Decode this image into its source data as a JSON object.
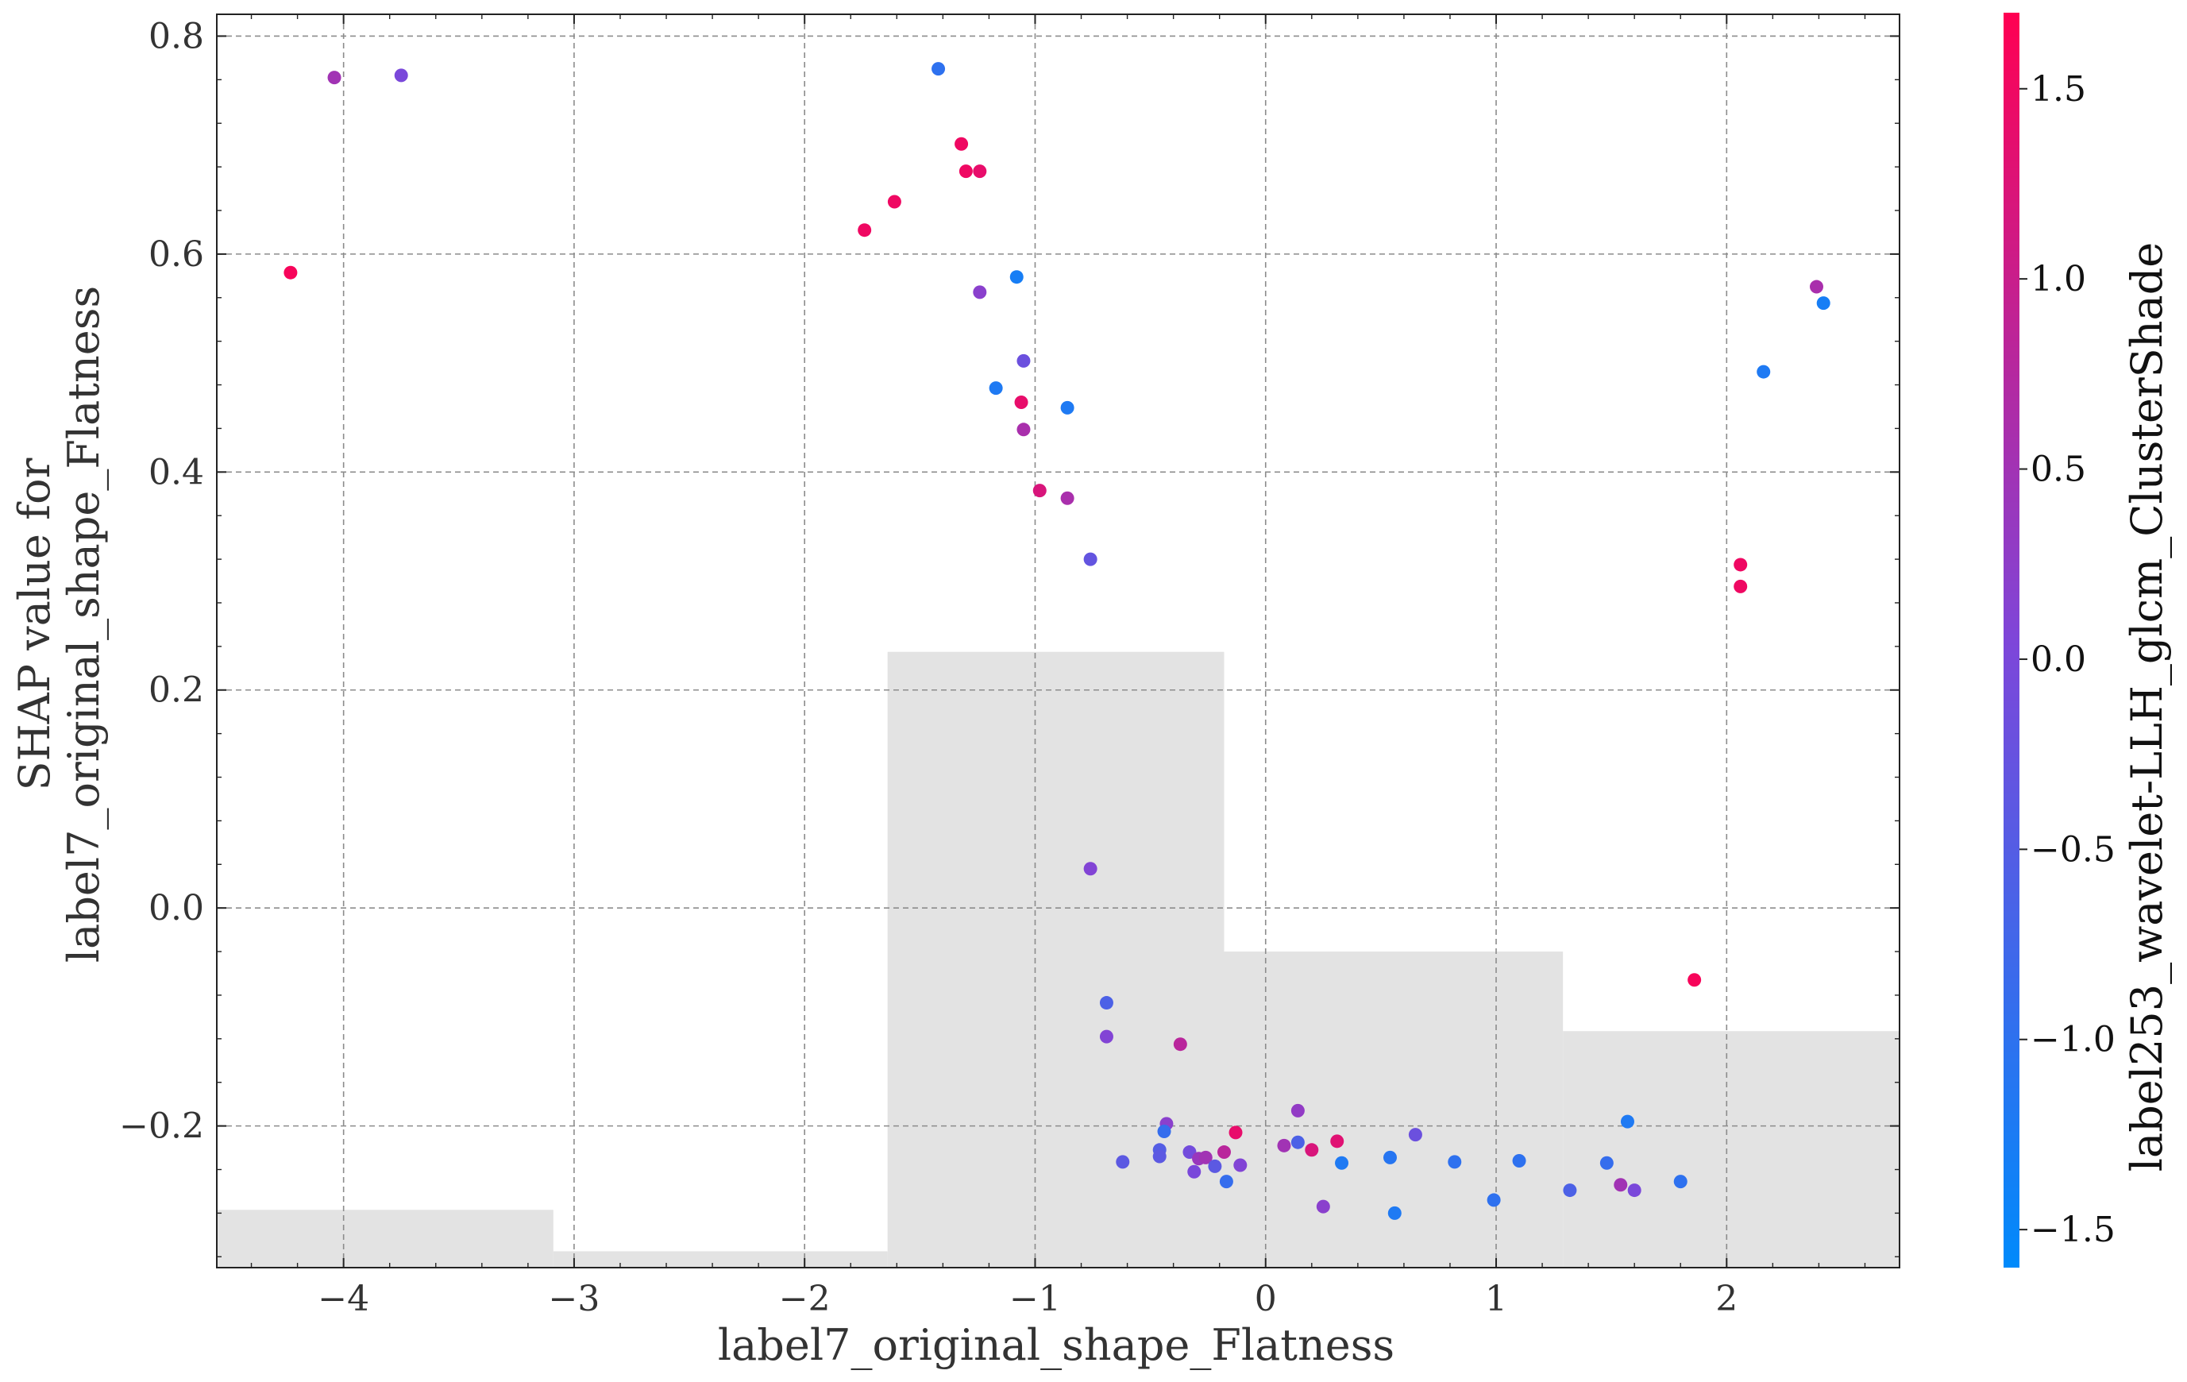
{
  "chart_data": {
    "type": "scatter",
    "xlabel": "label7_original_shape_Flatness",
    "ylabel_lines": [
      "SHAP value for",
      "label7_original_shape_Flatness"
    ],
    "colorbar_label": "label253_wavelet-LLH_glcm_ClusterShade",
    "xlim": [
      -4.55,
      2.75
    ],
    "ylim": [
      -0.33,
      0.82
    ],
    "xticks": [
      -4,
      -3,
      -2,
      -1,
      0,
      1,
      2
    ],
    "xtick_labels": [
      "−4",
      "−3",
      "−2",
      "−1",
      "0",
      "1",
      "2"
    ],
    "yticks": [
      -0.2,
      0.0,
      0.2,
      0.4,
      0.6,
      0.8
    ],
    "ytick_labels": [
      "−0.2",
      "0.0",
      "0.2",
      "0.4",
      "0.6",
      "0.8"
    ],
    "colorbar_range": [
      -1.6,
      1.7
    ],
    "colorbar_ticks": [
      -1.5,
      -1.0,
      -0.5,
      0.0,
      0.5,
      1.0,
      1.5
    ],
    "colorbar_tick_labels": [
      "−1.5",
      "−1.0",
      "−0.5",
      "0.0",
      "0.5",
      "1.0",
      "1.5"
    ],
    "colormap": [
      "#008afb",
      "#7e46d9",
      "#ff0052"
    ],
    "grid": true,
    "grid_color": "#8c8c8c",
    "histogram_color": "#e3e3e3",
    "histogram": [
      {
        "x0": -4.55,
        "x1": -3.09,
        "top": -0.277
      },
      {
        "x0": -3.09,
        "x1": -1.64,
        "top": -0.315
      },
      {
        "x0": -1.64,
        "x1": -0.18,
        "top": 0.235
      },
      {
        "x0": -0.18,
        "x1": 1.29,
        "top": -0.04
      },
      {
        "x0": 1.29,
        "x1": 2.75,
        "top": -0.113
      }
    ],
    "points": [
      {
        "x": -4.23,
        "y": 0.583,
        "c": 1.6
      },
      {
        "x": -4.04,
        "y": 0.762,
        "c": 0.5
      },
      {
        "x": -3.75,
        "y": 0.764,
        "c": 0.0
      },
      {
        "x": -1.42,
        "y": 0.77,
        "c": -1.0
      },
      {
        "x": -1.32,
        "y": 0.701,
        "c": 1.5
      },
      {
        "x": -1.3,
        "y": 0.676,
        "c": 1.5
      },
      {
        "x": -1.24,
        "y": 0.676,
        "c": 1.4
      },
      {
        "x": -1.61,
        "y": 0.648,
        "c": 1.5
      },
      {
        "x": -1.74,
        "y": 0.622,
        "c": 1.5
      },
      {
        "x": -1.08,
        "y": 0.579,
        "c": -1.3
      },
      {
        "x": -1.24,
        "y": 0.565,
        "c": 0.2
      },
      {
        "x": -1.05,
        "y": 0.502,
        "c": -0.2
      },
      {
        "x": -1.17,
        "y": 0.477,
        "c": -1.2
      },
      {
        "x": -1.06,
        "y": 0.464,
        "c": 1.4
      },
      {
        "x": -0.86,
        "y": 0.459,
        "c": -1.2
      },
      {
        "x": -1.05,
        "y": 0.439,
        "c": 0.6
      },
      {
        "x": -0.98,
        "y": 0.383,
        "c": 1.2
      },
      {
        "x": -0.86,
        "y": 0.376,
        "c": 0.6
      },
      {
        "x": -0.76,
        "y": 0.32,
        "c": -0.3
      },
      {
        "x": -0.76,
        "y": 0.036,
        "c": 0.1
      },
      {
        "x": -0.69,
        "y": -0.087,
        "c": -0.6
      },
      {
        "x": -0.69,
        "y": -0.118,
        "c": 0.1
      },
      {
        "x": -0.37,
        "y": -0.125,
        "c": 0.8
      },
      {
        "x": -0.43,
        "y": -0.198,
        "c": 0.2
      },
      {
        "x": -0.44,
        "y": -0.205,
        "c": -0.9
      },
      {
        "x": -0.46,
        "y": -0.222,
        "c": -0.5
      },
      {
        "x": -0.46,
        "y": -0.228,
        "c": -0.4
      },
      {
        "x": -0.62,
        "y": -0.233,
        "c": -0.4
      },
      {
        "x": -0.33,
        "y": -0.224,
        "c": -0.1
      },
      {
        "x": -0.29,
        "y": -0.23,
        "c": 0.4
      },
      {
        "x": -0.26,
        "y": -0.229,
        "c": 0.5
      },
      {
        "x": -0.31,
        "y": -0.242,
        "c": 0.0
      },
      {
        "x": -0.22,
        "y": -0.237,
        "c": -0.4
      },
      {
        "x": -0.18,
        "y": -0.224,
        "c": 0.8
      },
      {
        "x": -0.17,
        "y": -0.251,
        "c": -0.9
      },
      {
        "x": -0.11,
        "y": -0.236,
        "c": 0.1
      },
      {
        "x": -0.13,
        "y": -0.206,
        "c": 1.4
      },
      {
        "x": 0.08,
        "y": -0.218,
        "c": 0.5
      },
      {
        "x": 0.14,
        "y": -0.186,
        "c": 0.3
      },
      {
        "x": 0.14,
        "y": -0.215,
        "c": -0.6
      },
      {
        "x": 0.2,
        "y": -0.222,
        "c": 1.2
      },
      {
        "x": 0.25,
        "y": -0.274,
        "c": 0.2
      },
      {
        "x": 0.31,
        "y": -0.214,
        "c": 1.3
      },
      {
        "x": 0.33,
        "y": -0.234,
        "c": -1.2
      },
      {
        "x": 0.54,
        "y": -0.229,
        "c": -1.1
      },
      {
        "x": 0.56,
        "y": -0.28,
        "c": -1.2
      },
      {
        "x": 0.65,
        "y": -0.208,
        "c": -0.2
      },
      {
        "x": 0.82,
        "y": -0.233,
        "c": -1.0
      },
      {
        "x": 0.99,
        "y": -0.268,
        "c": -1.0
      },
      {
        "x": 1.1,
        "y": -0.232,
        "c": -1.0
      },
      {
        "x": 1.32,
        "y": -0.259,
        "c": -0.6
      },
      {
        "x": 1.48,
        "y": -0.234,
        "c": -0.9
      },
      {
        "x": 1.54,
        "y": -0.254,
        "c": 0.5
      },
      {
        "x": 1.57,
        "y": -0.196,
        "c": -1.2
      },
      {
        "x": 1.6,
        "y": -0.259,
        "c": 0.0
      },
      {
        "x": 1.8,
        "y": -0.251,
        "c": -1.0
      },
      {
        "x": 1.86,
        "y": -0.066,
        "c": 1.6
      },
      {
        "x": 2.06,
        "y": 0.315,
        "c": 1.5
      },
      {
        "x": 2.06,
        "y": 0.295,
        "c": 1.5
      },
      {
        "x": 2.16,
        "y": 0.492,
        "c": -1.2
      },
      {
        "x": 2.39,
        "y": 0.57,
        "c": 0.6
      },
      {
        "x": 2.42,
        "y": 0.555,
        "c": -1.3
      }
    ]
  }
}
